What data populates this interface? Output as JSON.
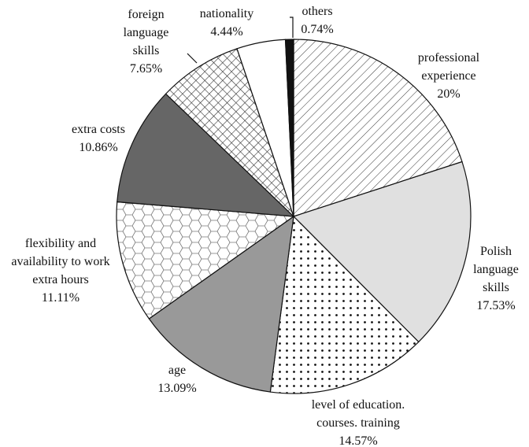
{
  "chart_data": {
    "type": "pie",
    "categories": [
      "professional experience",
      "Polish language skills",
      "level of education. courses. training",
      "age",
      "flexibility and availability to work extra hours",
      "extra costs",
      "foreign language skills",
      "nationality",
      "others"
    ],
    "values": [
      20,
      17.53,
      14.57,
      13.09,
      11.11,
      10.86,
      7.65,
      4.44,
      0.74
    ],
    "value_labels": [
      "20%",
      "17.53%",
      "14.57%",
      "13.09%",
      "11.11%",
      "10.86%",
      "7.65%",
      "4.44%",
      "0.74%"
    ],
    "colors": [
      "#ffffff",
      "#e0e0e0",
      "#ffffff",
      "#999999",
      "#ffffff",
      "#666666",
      "#ffffff",
      "#ffffff",
      "#111111"
    ],
    "patterns": [
      "diagonal",
      "none",
      "dots",
      "none",
      "hexagon",
      "none",
      "crosshatch",
      "none",
      "none"
    ]
  }
}
